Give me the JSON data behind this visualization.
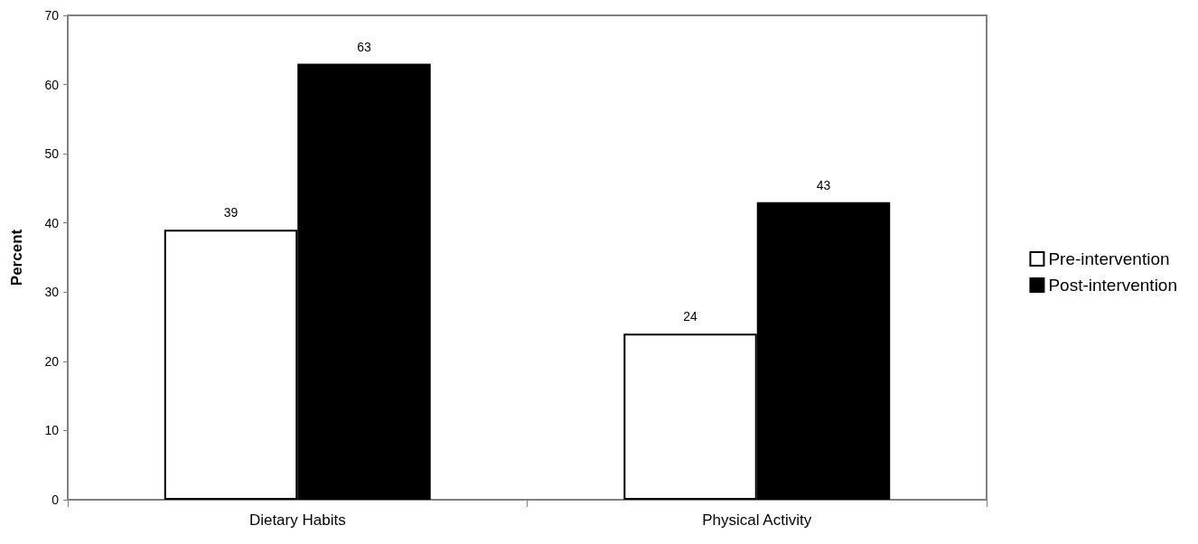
{
  "chart_data": {
    "type": "bar",
    "ylabel": "Percent",
    "categories": [
      "Dietary Habits",
      "Physical Activity"
    ],
    "series": [
      {
        "name": "Pre-intervention",
        "color": "#ffffff",
        "values": [
          39,
          24
        ]
      },
      {
        "name": "Post-intervention",
        "color": "#000000",
        "values": [
          63,
          43
        ]
      }
    ],
    "ylim": [
      0,
      70
    ],
    "yticks": [
      0,
      10,
      20,
      30,
      40,
      50,
      60,
      70
    ],
    "grid": false,
    "legend": "right",
    "data_labels": true
  }
}
